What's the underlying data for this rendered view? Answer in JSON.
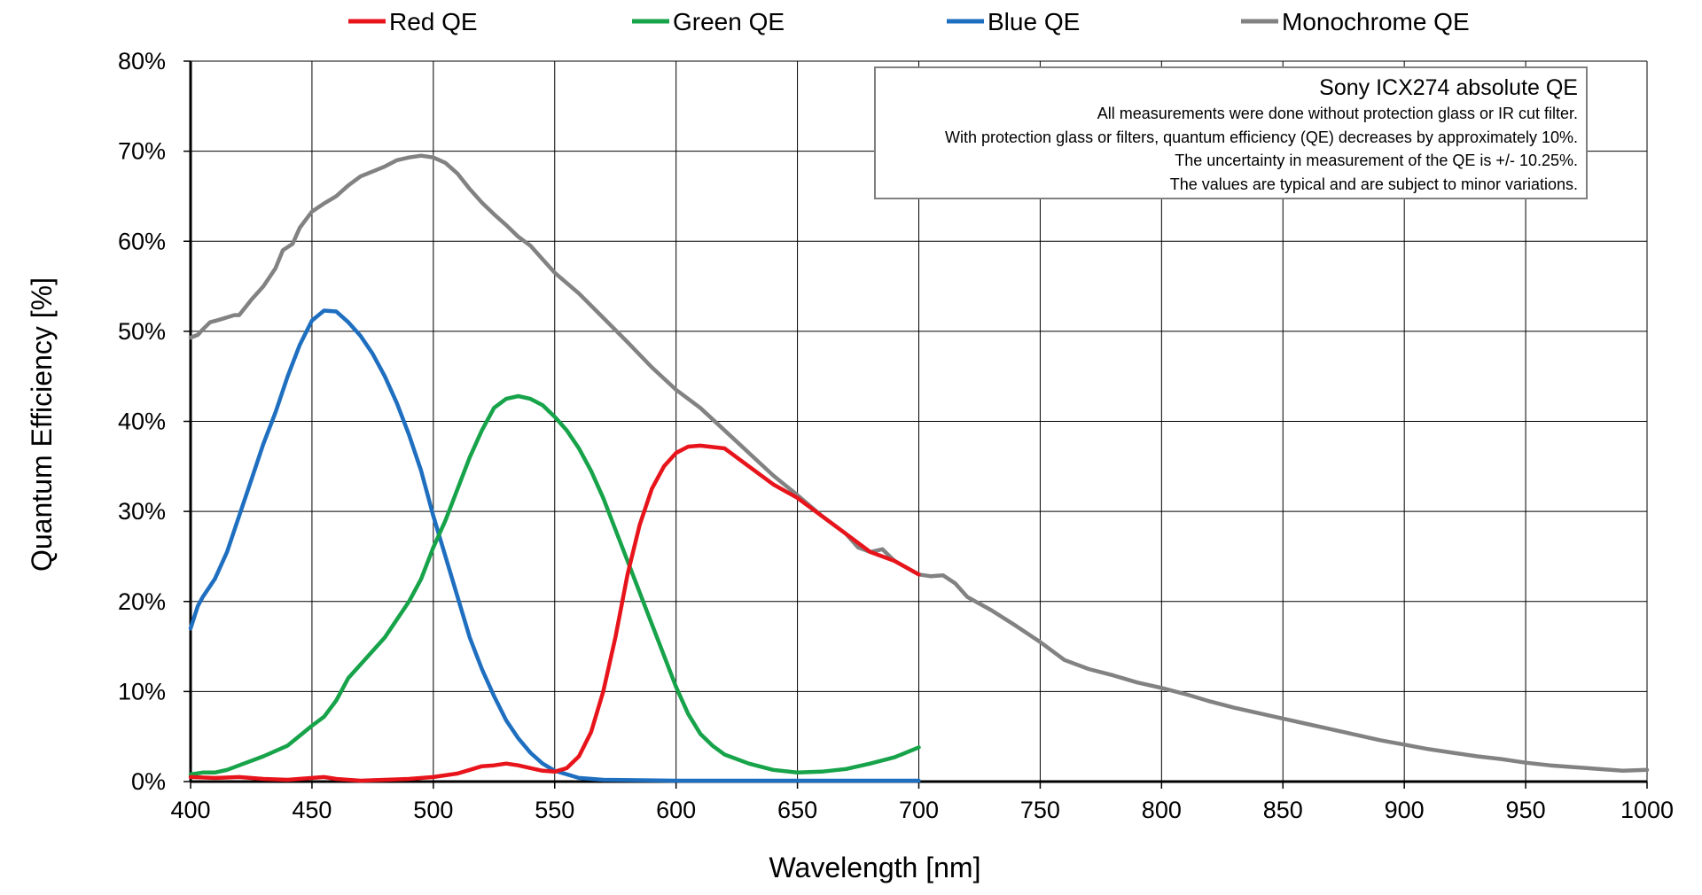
{
  "chart_data": {
    "type": "line",
    "xlabel": "Wavelength [nm]",
    "ylabel": "Quantum Efficiency [%]",
    "xlim": [
      400,
      1000
    ],
    "ylim": [
      0,
      80
    ],
    "xticks": [
      "400",
      "450",
      "500",
      "550",
      "600",
      "650",
      "700",
      "750",
      "800",
      "850",
      "900",
      "950",
      "1000"
    ],
    "yticks": [
      "0%",
      "10%",
      "20%",
      "30%",
      "40%",
      "50%",
      "60%",
      "70%",
      "80%"
    ],
    "grid": true,
    "legend_position": "top",
    "annotation": {
      "title": "Sony ICX274 absolute QE",
      "lines": [
        "All measurements were done without protection glass or IR cut filter.",
        "With protection glass or filters, quantum efficiency (QE) decreases by approximately 10%.",
        "The uncertainty in measurement of the QE is +/- 10.25%.",
        "The values are typical and are subject to minor variations."
      ]
    },
    "series": [
      {
        "name": "Red QE",
        "color": "#e8141b",
        "points": [
          [
            400,
            0.5
          ],
          [
            410,
            0.4
          ],
          [
            420,
            0.5
          ],
          [
            430,
            0.3
          ],
          [
            440,
            0.2
          ],
          [
            450,
            0.4
          ],
          [
            455,
            0.5
          ],
          [
            460,
            0.3
          ],
          [
            470,
            0.1
          ],
          [
            480,
            0.2
          ],
          [
            490,
            0.3
          ],
          [
            500,
            0.5
          ],
          [
            510,
            0.9
          ],
          [
            515,
            1.3
          ],
          [
            520,
            1.7
          ],
          [
            525,
            1.8
          ],
          [
            530,
            2.0
          ],
          [
            535,
            1.8
          ],
          [
            540,
            1.5
          ],
          [
            545,
            1.2
          ],
          [
            550,
            1.1
          ],
          [
            555,
            1.5
          ],
          [
            560,
            2.8
          ],
          [
            565,
            5.5
          ],
          [
            570,
            10.0
          ],
          [
            575,
            16.0
          ],
          [
            580,
            23.0
          ],
          [
            585,
            28.5
          ],
          [
            590,
            32.5
          ],
          [
            595,
            35.0
          ],
          [
            600,
            36.5
          ],
          [
            605,
            37.2
          ],
          [
            610,
            37.3
          ],
          [
            620,
            37.0
          ],
          [
            630,
            35.0
          ],
          [
            640,
            33.0
          ],
          [
            650,
            31.5
          ],
          [
            660,
            29.5
          ],
          [
            670,
            27.5
          ],
          [
            680,
            25.5
          ],
          [
            690,
            24.5
          ],
          [
            700,
            23.0
          ]
        ]
      },
      {
        "name": "Green QE",
        "color": "#17a34a",
        "points": [
          [
            400,
            0.8
          ],
          [
            405,
            1.0
          ],
          [
            410,
            1.0
          ],
          [
            415,
            1.3
          ],
          [
            420,
            1.8
          ],
          [
            430,
            2.8
          ],
          [
            440,
            4.0
          ],
          [
            450,
            6.2
          ],
          [
            455,
            7.2
          ],
          [
            460,
            9.0
          ],
          [
            465,
            11.5
          ],
          [
            470,
            13.0
          ],
          [
            480,
            16.0
          ],
          [
            490,
            20.0
          ],
          [
            495,
            22.5
          ],
          [
            500,
            26.0
          ],
          [
            505,
            29.0
          ],
          [
            510,
            32.5
          ],
          [
            515,
            36.0
          ],
          [
            520,
            39.0
          ],
          [
            525,
            41.5
          ],
          [
            530,
            42.5
          ],
          [
            535,
            42.8
          ],
          [
            540,
            42.5
          ],
          [
            545,
            41.8
          ],
          [
            550,
            40.5
          ],
          [
            555,
            39.0
          ],
          [
            560,
            37.0
          ],
          [
            565,
            34.5
          ],
          [
            570,
            31.5
          ],
          [
            575,
            28.0
          ],
          [
            580,
            24.5
          ],
          [
            585,
            21.0
          ],
          [
            590,
            17.5
          ],
          [
            595,
            14.0
          ],
          [
            600,
            10.5
          ],
          [
            605,
            7.5
          ],
          [
            610,
            5.3
          ],
          [
            615,
            4.0
          ],
          [
            620,
            3.0
          ],
          [
            630,
            2.0
          ],
          [
            640,
            1.3
          ],
          [
            650,
            1.0
          ],
          [
            660,
            1.1
          ],
          [
            670,
            1.4
          ],
          [
            680,
            2.0
          ],
          [
            690,
            2.7
          ],
          [
            700,
            3.8
          ]
        ]
      },
      {
        "name": "Blue QE",
        "color": "#1f6fc0",
        "points": [
          [
            400,
            17.0
          ],
          [
            403,
            19.5
          ],
          [
            405,
            20.5
          ],
          [
            410,
            22.5
          ],
          [
            415,
            25.5
          ],
          [
            420,
            29.5
          ],
          [
            425,
            33.5
          ],
          [
            430,
            37.5
          ],
          [
            435,
            41.0
          ],
          [
            440,
            45.0
          ],
          [
            445,
            48.5
          ],
          [
            450,
            51.2
          ],
          [
            455,
            52.3
          ],
          [
            460,
            52.2
          ],
          [
            465,
            51.0
          ],
          [
            470,
            49.5
          ],
          [
            475,
            47.5
          ],
          [
            480,
            45.0
          ],
          [
            485,
            42.0
          ],
          [
            490,
            38.5
          ],
          [
            495,
            34.5
          ],
          [
            500,
            29.5
          ],
          [
            505,
            25.0
          ],
          [
            510,
            20.5
          ],
          [
            515,
            16.0
          ],
          [
            520,
            12.5
          ],
          [
            525,
            9.5
          ],
          [
            530,
            6.8
          ],
          [
            535,
            4.8
          ],
          [
            540,
            3.2
          ],
          [
            545,
            2.0
          ],
          [
            550,
            1.2
          ],
          [
            560,
            0.4
          ],
          [
            570,
            0.2
          ],
          [
            600,
            0.1
          ],
          [
            650,
            0.1
          ],
          [
            700,
            0.1
          ]
        ]
      },
      {
        "name": "Monochrome QE",
        "color": "#828282",
        "points": [
          [
            400,
            49.3
          ],
          [
            403,
            49.6
          ],
          [
            405,
            50.2
          ],
          [
            408,
            51.0
          ],
          [
            412,
            51.3
          ],
          [
            418,
            51.8
          ],
          [
            420,
            51.8
          ],
          [
            425,
            53.5
          ],
          [
            430,
            55.0
          ],
          [
            435,
            57.0
          ],
          [
            438,
            59.0
          ],
          [
            442,
            59.7
          ],
          [
            445,
            61.5
          ],
          [
            450,
            63.3
          ],
          [
            455,
            64.2
          ],
          [
            460,
            65.0
          ],
          [
            465,
            66.2
          ],
          [
            470,
            67.2
          ],
          [
            480,
            68.3
          ],
          [
            485,
            69.0
          ],
          [
            490,
            69.3
          ],
          [
            495,
            69.5
          ],
          [
            500,
            69.3
          ],
          [
            505,
            68.7
          ],
          [
            510,
            67.5
          ],
          [
            515,
            65.8
          ],
          [
            520,
            64.3
          ],
          [
            525,
            63.0
          ],
          [
            530,
            61.8
          ],
          [
            535,
            60.5
          ],
          [
            540,
            59.5
          ],
          [
            545,
            58.0
          ],
          [
            550,
            56.5
          ],
          [
            560,
            54.2
          ],
          [
            570,
            51.5
          ],
          [
            580,
            48.8
          ],
          [
            590,
            46.0
          ],
          [
            600,
            43.5
          ],
          [
            610,
            41.5
          ],
          [
            620,
            39.0
          ],
          [
            630,
            36.5
          ],
          [
            640,
            34.0
          ],
          [
            650,
            31.8
          ],
          [
            660,
            29.5
          ],
          [
            670,
            27.5
          ],
          [
            675,
            26.0
          ],
          [
            680,
            25.5
          ],
          [
            685,
            25.8
          ],
          [
            690,
            24.5
          ],
          [
            700,
            23.0
          ],
          [
            705,
            22.8
          ],
          [
            710,
            22.9
          ],
          [
            715,
            22.0
          ],
          [
            720,
            20.5
          ],
          [
            730,
            19.0
          ],
          [
            740,
            17.3
          ],
          [
            750,
            15.5
          ],
          [
            760,
            13.5
          ],
          [
            770,
            12.5
          ],
          [
            780,
            11.8
          ],
          [
            790,
            11.0
          ],
          [
            800,
            10.4
          ],
          [
            810,
            9.7
          ],
          [
            820,
            8.9
          ],
          [
            830,
            8.2
          ],
          [
            840,
            7.6
          ],
          [
            850,
            7.0
          ],
          [
            860,
            6.4
          ],
          [
            870,
            5.8
          ],
          [
            880,
            5.2
          ],
          [
            890,
            4.6
          ],
          [
            900,
            4.1
          ],
          [
            910,
            3.6
          ],
          [
            920,
            3.2
          ],
          [
            930,
            2.8
          ],
          [
            940,
            2.5
          ],
          [
            950,
            2.1
          ],
          [
            960,
            1.8
          ],
          [
            970,
            1.6
          ],
          [
            980,
            1.4
          ],
          [
            990,
            1.2
          ],
          [
            1000,
            1.3
          ]
        ]
      }
    ]
  }
}
